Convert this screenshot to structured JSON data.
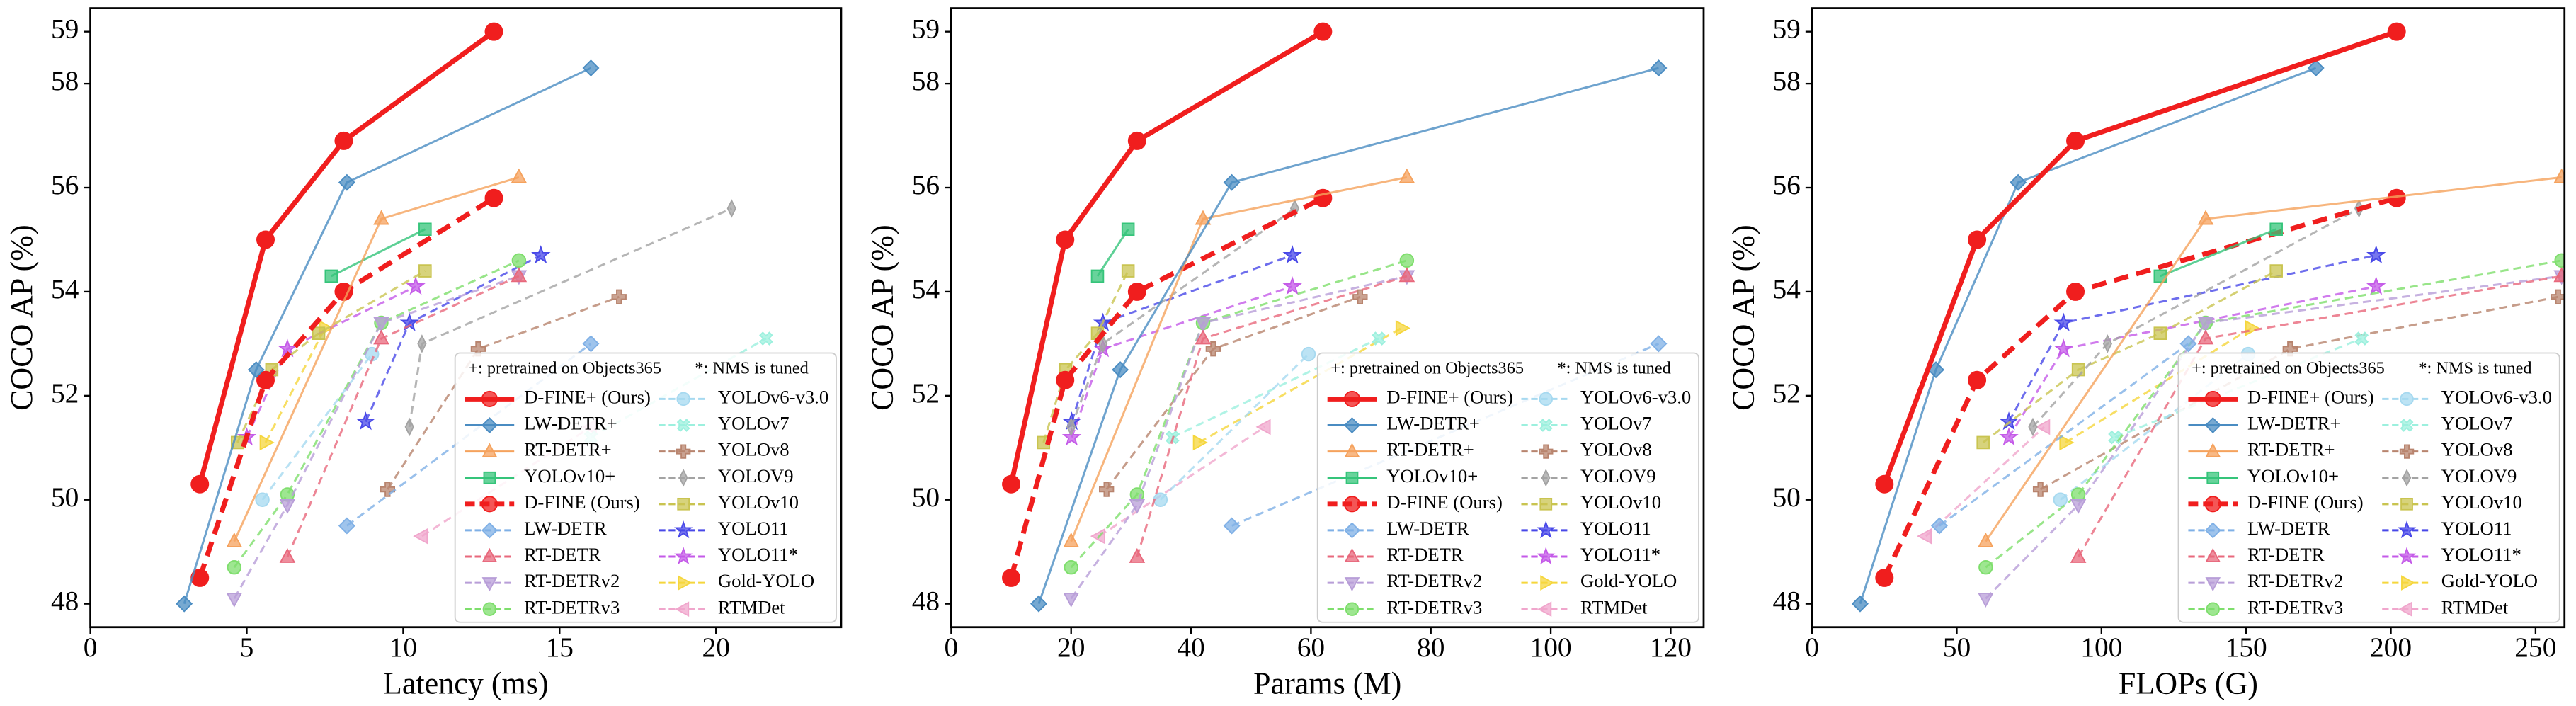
{
  "chart_data": [
    {
      "type": "line",
      "xlabel": "Latency (ms)",
      "ylabel": "COCO AP (%)",
      "xlim": [
        0,
        24
      ],
      "xticks": [
        0,
        5,
        10,
        15,
        20
      ],
      "ylim": [
        47.55,
        59.45
      ],
      "yticks": [
        48,
        50,
        52,
        54,
        56,
        58,
        59
      ],
      "legend": "lower right",
      "legend_notes": [
        "+: pretrained on Objects365",
        "*: NMS is tuned"
      ],
      "series": [
        {
          "name": "D-FINE+ (Ours)",
          "color": "#f01e1e",
          "marker": "o",
          "dashed": false,
          "x": [
            3.5,
            5.6,
            8.1,
            12.9
          ],
          "values": [
            50.3,
            55.0,
            56.9,
            59.0
          ]
        },
        {
          "name": "LW-DETR+",
          "color": "#4a8cc2",
          "marker": "D",
          "dashed": false,
          "x": [
            3.0,
            5.3,
            8.2,
            16.0
          ],
          "values": [
            48.0,
            52.5,
            56.1,
            58.3
          ]
        },
        {
          "name": "RT-DETR+",
          "color": "#f5a25d",
          "marker": "^",
          "dashed": false,
          "x": [
            4.6,
            9.3,
            13.7
          ],
          "values": [
            49.2,
            55.4,
            56.2
          ]
        },
        {
          "name": "YOLOv10+",
          "color": "#35c47a",
          "marker": "s",
          "dashed": false,
          "x": [
            7.7,
            10.7
          ],
          "values": [
            54.3,
            55.2
          ]
        },
        {
          "name": "D-FINE (Ours)",
          "color": "#f01e1e",
          "marker": "o",
          "dashed": true,
          "x": [
            3.5,
            5.6,
            8.1,
            12.9
          ],
          "values": [
            48.5,
            52.3,
            54.0,
            55.8
          ]
        },
        {
          "name": "LW-DETR",
          "color": "#7fb0e6",
          "marker": "D",
          "dashed": true,
          "x": [
            8.2,
            16.0
          ],
          "values": [
            49.5,
            53.0
          ]
        },
        {
          "name": "RT-DETR",
          "color": "#e8687c",
          "marker": "^",
          "dashed": true,
          "x": [
            6.3,
            9.3,
            13.7
          ],
          "values": [
            48.9,
            53.1,
            54.3
          ]
        },
        {
          "name": "RT-DETRv2",
          "color": "#b89ed8",
          "marker": "v",
          "dashed": true,
          "x": [
            4.6,
            6.3,
            9.3,
            13.7
          ],
          "values": [
            48.1,
            49.9,
            53.4,
            54.3
          ]
        },
        {
          "name": "RT-DETRv3",
          "color": "#7ede6c",
          "marker": "o",
          "dashed": true,
          "x": [
            4.6,
            6.3,
            9.3,
            13.7
          ],
          "values": [
            48.7,
            50.1,
            53.4,
            54.6
          ]
        },
        {
          "name": "YOLOv6-v3.0",
          "color": "#a6d9f0",
          "marker": "o",
          "dashed": true,
          "x": [
            5.5,
            9.0
          ],
          "values": [
            50.0,
            52.8
          ]
        },
        {
          "name": "YOLOv7",
          "color": "#9cf0de",
          "marker": "X",
          "dashed": true,
          "x": [
            16.0,
            21.6
          ],
          "values": [
            51.2,
            53.1
          ]
        },
        {
          "name": "YOLOv8",
          "color": "#b8846e",
          "marker": "P",
          "dashed": true,
          "x": [
            9.5,
            12.4,
            16.9
          ],
          "values": [
            50.2,
            52.9,
            53.9
          ]
        },
        {
          "name": "YOLOV9",
          "color": "#a3a3a3",
          "marker": "d",
          "dashed": true,
          "x": [
            10.2,
            10.6,
            20.5
          ],
          "values": [
            51.4,
            53.0,
            55.6
          ]
        },
        {
          "name": "YOLOv10",
          "color": "#c9c450",
          "marker": "s",
          "dashed": true,
          "x": [
            4.7,
            5.8,
            7.3,
            10.7
          ],
          "values": [
            51.1,
            52.5,
            53.2,
            54.4
          ]
        },
        {
          "name": "YOLO11",
          "color": "#4848e8",
          "marker": "*",
          "dashed": true,
          "x": [
            8.8,
            10.2,
            14.4
          ],
          "values": [
            51.5,
            53.4,
            54.7
          ]
        },
        {
          "name": "YOLO11*",
          "color": "#c45ae8",
          "marker": "*",
          "dashed": true,
          "x": [
            5.0,
            6.3,
            10.4
          ],
          "values": [
            51.2,
            52.9,
            54.1
          ]
        },
        {
          "name": "Gold-YOLO",
          "color": "#f5d63c",
          "marker": ">",
          "dashed": true,
          "x": [
            5.6,
            7.5
          ],
          "values": [
            51.1,
            53.3
          ]
        },
        {
          "name": "RTMDet",
          "color": "#f0a6cc",
          "marker": "<",
          "dashed": true,
          "x": [
            10.6,
            16.0
          ],
          "values": [
            49.3,
            51.4
          ]
        }
      ]
    },
    {
      "type": "line",
      "xlabel": "Params (M)",
      "ylabel": "COCO AP (%)",
      "xlim": [
        0,
        125.5
      ],
      "xticks": [
        0,
        20,
        40,
        60,
        80,
        100,
        120
      ],
      "ylim": [
        47.55,
        59.45
      ],
      "yticks": [
        48,
        50,
        52,
        54,
        56,
        58,
        59
      ],
      "legend": "lower right",
      "legend_notes": [
        "+: pretrained on Objects365",
        "*: NMS is tuned"
      ],
      "series": [
        {
          "name": "D-FINE+ (Ours)",
          "color": "#f01e1e",
          "marker": "o",
          "dashed": false,
          "x": [
            10,
            19,
            31,
            62
          ],
          "values": [
            50.3,
            55.0,
            56.9,
            59.0
          ]
        },
        {
          "name": "LW-DETR+",
          "color": "#4a8cc2",
          "marker": "D",
          "dashed": false,
          "x": [
            14.6,
            28.2,
            46.8,
            118
          ],
          "values": [
            48.0,
            52.5,
            56.1,
            58.3
          ]
        },
        {
          "name": "RT-DETR+",
          "color": "#f5a25d",
          "marker": "^",
          "dashed": false,
          "x": [
            20,
            42,
            76
          ],
          "values": [
            49.2,
            55.4,
            56.2
          ]
        },
        {
          "name": "YOLOv10+",
          "color": "#35c47a",
          "marker": "s",
          "dashed": false,
          "x": [
            24.4,
            29.5
          ],
          "values": [
            54.3,
            55.2
          ]
        },
        {
          "name": "D-FINE (Ours)",
          "color": "#f01e1e",
          "marker": "o",
          "dashed": true,
          "x": [
            10,
            19,
            31,
            62
          ],
          "values": [
            48.5,
            52.3,
            54.0,
            55.8
          ]
        },
        {
          "name": "LW-DETR",
          "color": "#7fb0e6",
          "marker": "D",
          "dashed": true,
          "x": [
            46.8,
            118
          ],
          "values": [
            49.5,
            53.0
          ]
        },
        {
          "name": "RT-DETR",
          "color": "#e8687c",
          "marker": "^",
          "dashed": true,
          "x": [
            31,
            42,
            76
          ],
          "values": [
            48.9,
            53.1,
            54.3
          ]
        },
        {
          "name": "RT-DETRv2",
          "color": "#b89ed8",
          "marker": "v",
          "dashed": true,
          "x": [
            20,
            31,
            42,
            76
          ],
          "values": [
            48.1,
            49.9,
            53.4,
            54.3
          ]
        },
        {
          "name": "RT-DETRv3",
          "color": "#7ede6c",
          "marker": "o",
          "dashed": true,
          "x": [
            20,
            31,
            42,
            76
          ],
          "values": [
            48.7,
            50.1,
            53.4,
            54.6
          ]
        },
        {
          "name": "YOLOv6-v3.0",
          "color": "#a6d9f0",
          "marker": "o",
          "dashed": true,
          "x": [
            34.9,
            59.6
          ],
          "values": [
            50.0,
            52.8
          ]
        },
        {
          "name": "YOLOv7",
          "color": "#9cf0de",
          "marker": "X",
          "dashed": true,
          "x": [
            36.9,
            71.3
          ],
          "values": [
            51.2,
            53.1
          ]
        },
        {
          "name": "YOLOv8",
          "color": "#b8846e",
          "marker": "P",
          "dashed": true,
          "x": [
            25.9,
            43.7,
            68.2
          ],
          "values": [
            50.2,
            52.9,
            53.9
          ]
        },
        {
          "name": "YOLOV9",
          "color": "#a3a3a3",
          "marker": "d",
          "dashed": true,
          "x": [
            20.0,
            25.3,
            57.3
          ],
          "values": [
            51.4,
            53.0,
            55.6
          ]
        },
        {
          "name": "YOLOv10",
          "color": "#c9c450",
          "marker": "s",
          "dashed": true,
          "x": [
            15.4,
            19.1,
            24.4,
            29.5
          ],
          "values": [
            51.1,
            52.5,
            53.2,
            54.4
          ]
        },
        {
          "name": "YOLO11",
          "color": "#4848e8",
          "marker": "*",
          "dashed": true,
          "x": [
            20.1,
            25.3,
            56.9
          ],
          "values": [
            51.5,
            53.4,
            54.7
          ]
        },
        {
          "name": "YOLO11*",
          "color": "#c45ae8",
          "marker": "*",
          "dashed": true,
          "x": [
            20.1,
            25.3,
            56.9
          ],
          "values": [
            51.2,
            52.9,
            54.1
          ]
        },
        {
          "name": "Gold-YOLO",
          "color": "#f5d63c",
          "marker": ">",
          "dashed": true,
          "x": [
            41.3,
            75.1
          ],
          "values": [
            51.1,
            53.3
          ]
        },
        {
          "name": "RTMDet",
          "color": "#f0a6cc",
          "marker": "<",
          "dashed": true,
          "x": [
            24.7,
            52.3
          ],
          "values": [
            49.3,
            51.4
          ]
        }
      ]
    },
    {
      "type": "line",
      "xlabel": "FLOPs (G)",
      "ylabel": "COCO AP (%)",
      "xlim": [
        0,
        260
      ],
      "xticks": [
        0,
        50,
        100,
        150,
        200,
        250
      ],
      "ylim": [
        47.55,
        59.45
      ],
      "yticks": [
        48,
        50,
        52,
        54,
        56,
        58,
        59
      ],
      "legend": "lower right",
      "legend_notes": [
        "+: pretrained on Objects365",
        "*: NMS is tuned"
      ],
      "series": [
        {
          "name": "D-FINE+ (Ours)",
          "color": "#f01e1e",
          "marker": "o",
          "dashed": false,
          "x": [
            25,
            57,
            91,
            202
          ],
          "values": [
            50.3,
            55.0,
            56.9,
            59.0
          ]
        },
        {
          "name": "LW-DETR+",
          "color": "#4a8cc2",
          "marker": "D",
          "dashed": false,
          "x": [
            16.6,
            42.8,
            71.2,
            174.1
          ],
          "values": [
            48.0,
            52.5,
            56.1,
            58.3
          ]
        },
        {
          "name": "RT-DETR+",
          "color": "#f5a25d",
          "marker": "^",
          "dashed": false,
          "x": [
            60,
            136,
            259
          ],
          "values": [
            49.2,
            55.4,
            56.2
          ]
        },
        {
          "name": "YOLOv10+",
          "color": "#35c47a",
          "marker": "s",
          "dashed": false,
          "x": [
            120.3,
            160.4
          ],
          "values": [
            54.3,
            55.2
          ]
        },
        {
          "name": "D-FINE (Ours)",
          "color": "#f01e1e",
          "marker": "o",
          "dashed": true,
          "x": [
            25,
            57,
            91,
            202
          ],
          "values": [
            48.5,
            52.3,
            54.0,
            55.8
          ]
        },
        {
          "name": "LW-DETR",
          "color": "#7fb0e6",
          "marker": "D",
          "dashed": true,
          "x": [
            44,
            130
          ],
          "values": [
            49.5,
            53.0
          ]
        },
        {
          "name": "RT-DETR",
          "color": "#e8687c",
          "marker": "^",
          "dashed": true,
          "x": [
            92,
            136,
            259
          ],
          "values": [
            48.9,
            53.1,
            54.3
          ]
        },
        {
          "name": "RT-DETRv2",
          "color": "#b89ed8",
          "marker": "v",
          "dashed": true,
          "x": [
            60,
            92,
            136,
            259
          ],
          "values": [
            48.1,
            49.9,
            53.4,
            54.3
          ]
        },
        {
          "name": "RT-DETRv3",
          "color": "#7ede6c",
          "marker": "o",
          "dashed": true,
          "x": [
            60,
            92,
            136,
            259
          ],
          "values": [
            48.7,
            50.1,
            53.4,
            54.6
          ]
        },
        {
          "name": "YOLOv6-v3.0",
          "color": "#a6d9f0",
          "marker": "o",
          "dashed": true,
          "x": [
            85.8,
            150.7
          ],
          "values": [
            50.0,
            52.8
          ]
        },
        {
          "name": "YOLOv7",
          "color": "#9cf0de",
          "marker": "X",
          "dashed": true,
          "x": [
            104.7,
            189.9
          ],
          "values": [
            51.2,
            53.1
          ]
        },
        {
          "name": "YOLOv8",
          "color": "#b8846e",
          "marker": "P",
          "dashed": true,
          "x": [
            78.9,
            165.2,
            257.8
          ],
          "values": [
            50.2,
            52.9,
            53.9
          ]
        },
        {
          "name": "YOLOV9",
          "color": "#a3a3a3",
          "marker": "d",
          "dashed": true,
          "x": [
            76.3,
            102.1,
            189.0
          ],
          "values": [
            51.4,
            53.0,
            55.6
          ]
        },
        {
          "name": "YOLOv10",
          "color": "#c9c450",
          "marker": "s",
          "dashed": true,
          "x": [
            59.1,
            92,
            120.3,
            160.4
          ],
          "values": [
            51.1,
            52.5,
            53.2,
            54.4
          ]
        },
        {
          "name": "YOLO11",
          "color": "#4848e8",
          "marker": "*",
          "dashed": true,
          "x": [
            68,
            86.9,
            194.9
          ],
          "values": [
            51.5,
            53.4,
            54.7
          ]
        },
        {
          "name": "YOLO11*",
          "color": "#c45ae8",
          "marker": "*",
          "dashed": true,
          "x": [
            68,
            86.9,
            194.9
          ],
          "values": [
            51.2,
            52.9,
            54.1
          ]
        },
        {
          "name": "Gold-YOLO",
          "color": "#f5d63c",
          "marker": ">",
          "dashed": true,
          "x": [
            87.5,
            151.7
          ],
          "values": [
            51.1,
            53.3
          ]
        },
        {
          "name": "RTMDet",
          "color": "#f0a6cc",
          "marker": "<",
          "dashed": true,
          "x": [
            39.3,
            80.2
          ],
          "values": [
            49.3,
            51.4
          ]
        }
      ]
    }
  ]
}
